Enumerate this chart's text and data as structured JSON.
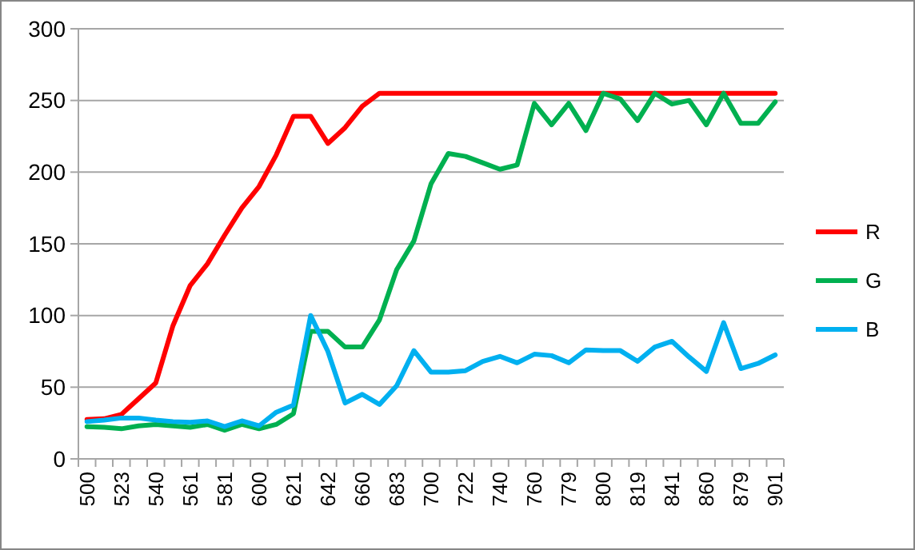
{
  "chart_data": {
    "type": "line",
    "categories": [
      "500",
      null,
      "523",
      null,
      "540",
      null,
      "561",
      null,
      "581",
      null,
      "600",
      null,
      "621",
      null,
      "642",
      null,
      "660",
      null,
      "683",
      null,
      "700",
      null,
      "722",
      null,
      "740",
      null,
      "760",
      null,
      "779",
      null,
      "800",
      null,
      "819",
      null,
      "841",
      null,
      "860",
      null,
      "879",
      null,
      "901"
    ],
    "series": [
      {
        "name": "R",
        "color": "#ff0000",
        "values": [
          27.5,
          28,
          31,
          42,
          53,
          93,
          121,
          136,
          156,
          175,
          190,
          212,
          239,
          239,
          220,
          231,
          246,
          255,
          255,
          255,
          255,
          255,
          255,
          255,
          255,
          255,
          255,
          255,
          255,
          255,
          255,
          255,
          255,
          255,
          255,
          255,
          255,
          255,
          255,
          255,
          255
        ]
      },
      {
        "name": "G",
        "color": "#00b050",
        "values": [
          22.5,
          22,
          21,
          23,
          24,
          23,
          22,
          24,
          20,
          24,
          21,
          24,
          31.5,
          89,
          89,
          78,
          78,
          97,
          132,
          152,
          192,
          213,
          211,
          206.5,
          202,
          205,
          248,
          233,
          248,
          229,
          255,
          251,
          236,
          255,
          247.5,
          250,
          233,
          255,
          234,
          234,
          249
        ]
      },
      {
        "name": "B",
        "color": "#00b0f0",
        "values": [
          26,
          27,
          28.5,
          28.5,
          27,
          26,
          25.5,
          26.5,
          22.5,
          26.5,
          23,
          32.5,
          37.5,
          100,
          75,
          39,
          45,
          38,
          51,
          75.5,
          60.5,
          60.5,
          61.5,
          68,
          71.5,
          67,
          73,
          72,
          67,
          76,
          75.5,
          75.5,
          68,
          78,
          82,
          71,
          61,
          95,
          63,
          66.5,
          72.5
        ]
      }
    ],
    "ylim": [
      0,
      300
    ],
    "yticks": [
      0,
      50,
      100,
      150,
      200,
      250,
      300
    ],
    "grid": "y",
    "legend": "right",
    "marker": "none",
    "line_style": "solid"
  }
}
